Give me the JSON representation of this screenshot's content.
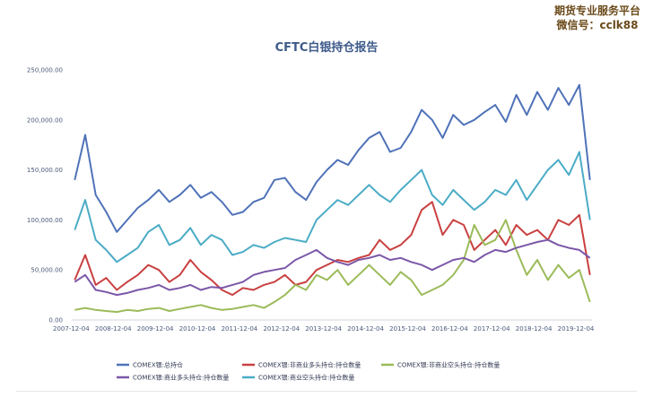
{
  "watermark": {
    "line1": "期货专业服务平台",
    "line2": "微信号：cclk88"
  },
  "chart_data": {
    "type": "line",
    "title": "CFTC白银持仓报告",
    "xlabel": "",
    "ylabel": "",
    "ylim": [
      0,
      250000
    ],
    "yticks": [
      "0.00",
      "50,000.00",
      "100,000.00",
      "150,000.00",
      "200,000.00",
      "250,000.00"
    ],
    "xticks": [
      "2007-12-04",
      "2008-12-04",
      "2009-12-04",
      "2010-12-04",
      "2011-12-04",
      "2012-12-04",
      "2013-12-04",
      "2014-12-04",
      "2015-12-04",
      "2016-12-04",
      "2017-12-04",
      "2018-12-04",
      "2019-12-04"
    ],
    "x": [
      2008.0,
      2008.25,
      2008.5,
      2008.75,
      2009.0,
      2009.25,
      2009.5,
      2009.75,
      2010.0,
      2010.25,
      2010.5,
      2010.75,
      2011.0,
      2011.25,
      2011.5,
      2011.75,
      2012.0,
      2012.25,
      2012.5,
      2012.75,
      2013.0,
      2013.25,
      2013.5,
      2013.75,
      2014.0,
      2014.25,
      2014.5,
      2014.75,
      2015.0,
      2015.25,
      2015.5,
      2015.75,
      2016.0,
      2016.25,
      2016.5,
      2016.75,
      2017.0,
      2017.25,
      2017.5,
      2017.75,
      2018.0,
      2018.25,
      2018.5,
      2018.75,
      2019.0,
      2019.25,
      2019.5,
      2019.75,
      2020.0,
      2020.25
    ],
    "grid": false,
    "legend_position": "bottom",
    "series": [
      {
        "name": "COMEX银:总持仓",
        "color": "#4f72b8",
        "values": [
          140000,
          185000,
          125000,
          108000,
          88000,
          100000,
          112000,
          120000,
          130000,
          118000,
          125000,
          135000,
          122000,
          128000,
          118000,
          105000,
          108000,
          118000,
          122000,
          140000,
          142000,
          128000,
          120000,
          138000,
          150000,
          160000,
          155000,
          170000,
          182000,
          188000,
          168000,
          172000,
          188000,
          210000,
          200000,
          182000,
          205000,
          195000,
          200000,
          208000,
          215000,
          198000,
          225000,
          205000,
          228000,
          210000,
          232000,
          215000,
          235000,
          140000
        ]
      },
      {
        "name": "COMEX银:非商业多头持仓:持仓数量",
        "color": "#c94040",
        "values": [
          40000,
          65000,
          35000,
          42000,
          30000,
          38000,
          45000,
          55000,
          50000,
          38000,
          45000,
          60000,
          48000,
          40000,
          30000,
          25000,
          32000,
          30000,
          35000,
          38000,
          45000,
          35000,
          38000,
          50000,
          55000,
          60000,
          58000,
          62000,
          65000,
          80000,
          70000,
          75000,
          85000,
          110000,
          118000,
          85000,
          100000,
          95000,
          70000,
          80000,
          90000,
          75000,
          95000,
          85000,
          90000,
          80000,
          100000,
          95000,
          105000,
          45000
        ]
      },
      {
        "name": "COMEX银:非商业空头持仓:持仓数量",
        "color": "#9bbb59",
        "values": [
          10000,
          12000,
          10000,
          9000,
          8000,
          10000,
          9000,
          11000,
          12000,
          9000,
          11000,
          13000,
          15000,
          12000,
          10000,
          11000,
          13000,
          15000,
          12000,
          18000,
          25000,
          35000,
          30000,
          45000,
          40000,
          50000,
          35000,
          45000,
          55000,
          45000,
          35000,
          48000,
          40000,
          25000,
          30000,
          35000,
          45000,
          60000,
          95000,
          75000,
          80000,
          100000,
          70000,
          45000,
          60000,
          40000,
          55000,
          42000,
          50000,
          18000
        ]
      },
      {
        "name": "COMEX银:商业多头持仓:持仓数量",
        "color": "#7b57a8",
        "values": [
          38000,
          45000,
          30000,
          28000,
          25000,
          27000,
          30000,
          32000,
          35000,
          30000,
          32000,
          35000,
          30000,
          33000,
          32000,
          35000,
          38000,
          45000,
          48000,
          50000,
          52000,
          60000,
          65000,
          70000,
          62000,
          58000,
          55000,
          60000,
          62000,
          65000,
          60000,
          62000,
          58000,
          55000,
          50000,
          55000,
          60000,
          62000,
          58000,
          65000,
          70000,
          68000,
          72000,
          75000,
          78000,
          80000,
          75000,
          72000,
          70000,
          62000
        ]
      },
      {
        "name": "COMEX银:商业空头持仓:持仓数量",
        "color": "#4bacc6",
        "values": [
          90000,
          120000,
          80000,
          70000,
          58000,
          65000,
          72000,
          88000,
          95000,
          75000,
          80000,
          92000,
          75000,
          85000,
          80000,
          65000,
          68000,
          75000,
          72000,
          78000,
          82000,
          80000,
          78000,
          100000,
          110000,
          120000,
          115000,
          125000,
          135000,
          125000,
          118000,
          130000,
          140000,
          150000,
          125000,
          115000,
          130000,
          120000,
          110000,
          118000,
          130000,
          125000,
          140000,
          120000,
          135000,
          150000,
          160000,
          145000,
          168000,
          100000
        ]
      }
    ]
  }
}
